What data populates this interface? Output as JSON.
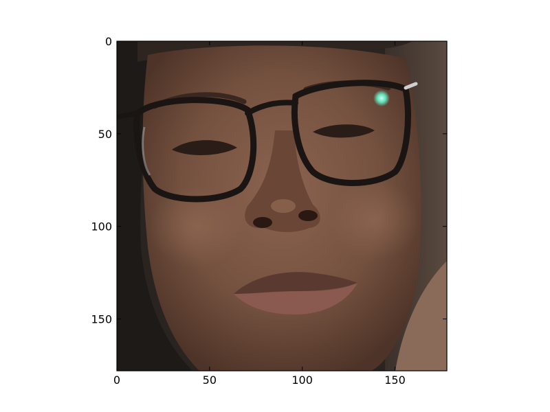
{
  "figure": {
    "background": "#ffffff",
    "axes_frame_color": "#000000",
    "image_content": "portrait-photo-woman-with-dark-rimmed-glasses"
  },
  "axes": {
    "x": {
      "ticks": [
        {
          "value": 0,
          "label": "0"
        },
        {
          "value": 50,
          "label": "50"
        },
        {
          "value": 100,
          "label": "100"
        },
        {
          "value": 150,
          "label": "150"
        }
      ],
      "range": [
        0,
        178
      ]
    },
    "y": {
      "ticks": [
        {
          "value": 0,
          "label": "0"
        },
        {
          "value": 50,
          "label": "50"
        },
        {
          "value": 100,
          "label": "100"
        },
        {
          "value": 150,
          "label": "150"
        }
      ],
      "range": [
        0,
        178
      ],
      "inverted": true
    }
  },
  "palette": {
    "skin": "#7a5440",
    "skin_shadow": "#5a3c2c",
    "skin_highlight": "#9a7258",
    "hair": "#1e1a17",
    "background_dark": "#2a2420",
    "glasses": "#1a1512",
    "lips": "#8a5a50",
    "glare": "#8fffe0"
  }
}
